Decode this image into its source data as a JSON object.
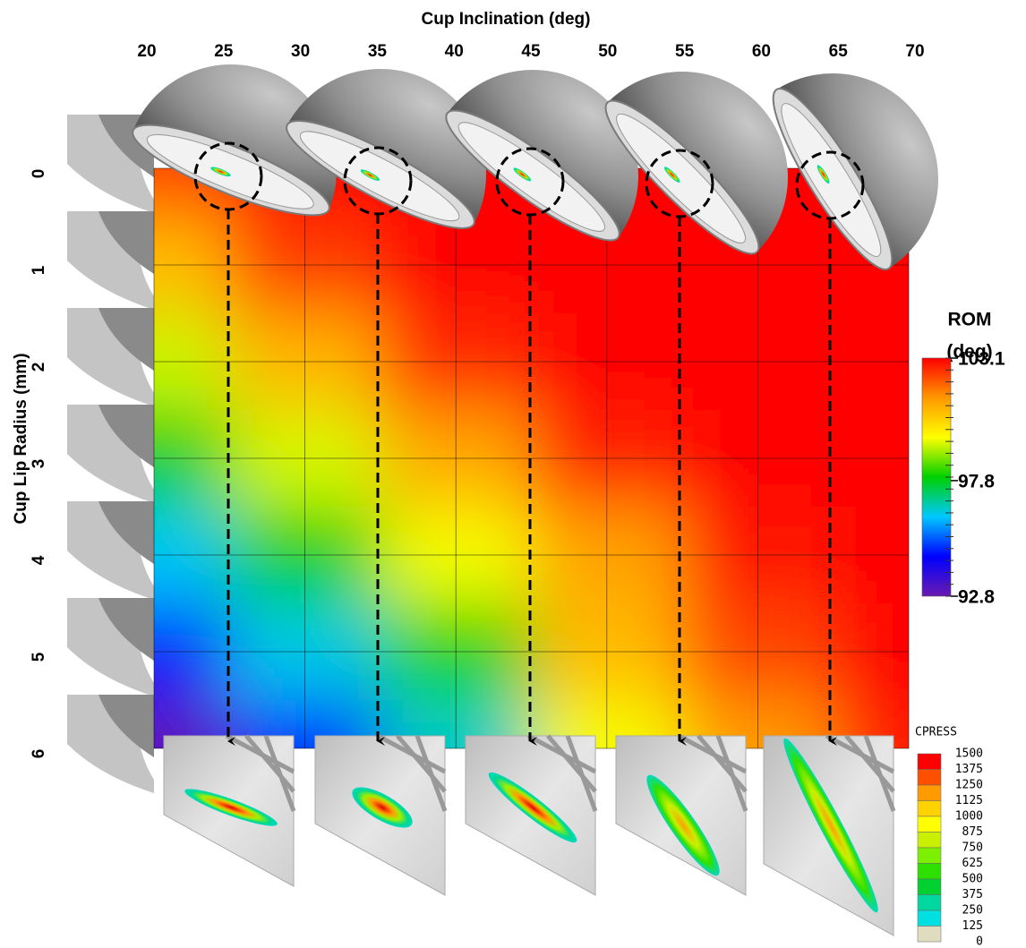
{
  "chart_data": {
    "type": "heatmap",
    "x_label": "Cup Inclination (deg)",
    "y_label": "Cup Lip Radius (mm)",
    "x": [
      20,
      30,
      40,
      50,
      60,
      70
    ],
    "y": [
      0,
      1,
      2,
      3,
      4,
      5,
      6
    ],
    "z": [
      [
        102.3,
        103.1,
        103.1,
        103.1,
        103.1,
        103.1
      ],
      [
        100.8,
        102.4,
        103.1,
        103.1,
        103.1,
        103.1
      ],
      [
        99.3,
        100.9,
        102.6,
        103.1,
        103.1,
        103.1
      ],
      [
        97.8,
        99.4,
        101.1,
        102.7,
        103.1,
        103.1
      ],
      [
        96.3,
        97.9,
        99.6,
        101.2,
        102.9,
        103.1
      ],
      [
        94.8,
        96.4,
        98.1,
        100.8,
        102.3,
        103.1
      ],
      [
        93.0,
        94.9,
        96.6,
        99.6,
        101.3,
        102.8
      ]
    ],
    "xlim": [
      20,
      70
    ],
    "xticks": [
      20,
      25,
      30,
      35,
      40,
      45,
      50,
      55,
      60,
      65,
      70
    ],
    "ylim": [
      0,
      6
    ],
    "yticks": [
      0,
      1,
      2,
      3,
      4,
      5,
      6
    ],
    "grid": true,
    "colorbar": {
      "title_lines": [
        "ROM",
        "(deg)"
      ],
      "range": [
        92.8,
        103.1
      ],
      "ticks": [
        103.1,
        97.8,
        92.8
      ],
      "colorscale": [
        "#6a1bb0",
        "#0000ff",
        "#00c8ff",
        "#00d000",
        "#ffff00",
        "#ff9800",
        "#ff0000"
      ]
    }
  },
  "contact_pressure_legend": {
    "title": "CPRESS",
    "levels": [
      1500,
      1375,
      1250,
      1125,
      1000,
      875,
      750,
      625,
      500,
      375,
      250,
      125,
      0
    ],
    "colors": [
      "#ff0000",
      "#ff5000",
      "#ff9a00",
      "#ffd200",
      "#ffff00",
      "#c8f000",
      "#7cf000",
      "#2ee000",
      "#00d030",
      "#00d8a0",
      "#00e0e0",
      "#e0dcc0",
      "#e4e4e4"
    ]
  }
}
